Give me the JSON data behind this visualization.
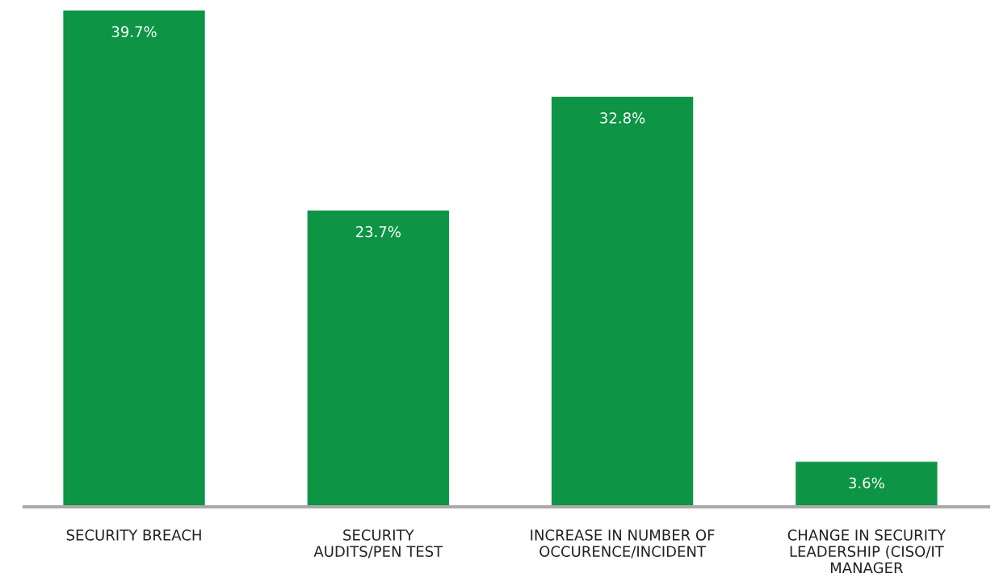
{
  "chart_data": {
    "type": "bar",
    "categories": [
      "SECURITY BREACH",
      "SECURITY\nAUDITS/PEN TEST",
      "INCREASE IN NUMBER OF\nOCCURENCE/INCIDENT",
      "CHANGE IN SECURITY\nLEADERSHIP (CISO/IT\nMANAGER"
    ],
    "values": [
      39.7,
      23.7,
      32.8,
      3.6
    ],
    "value_labels": [
      "39.7%",
      "23.7%",
      "32.8%",
      "3.6%"
    ],
    "color": "#0d9444",
    "grid": false,
    "legend": false
  }
}
